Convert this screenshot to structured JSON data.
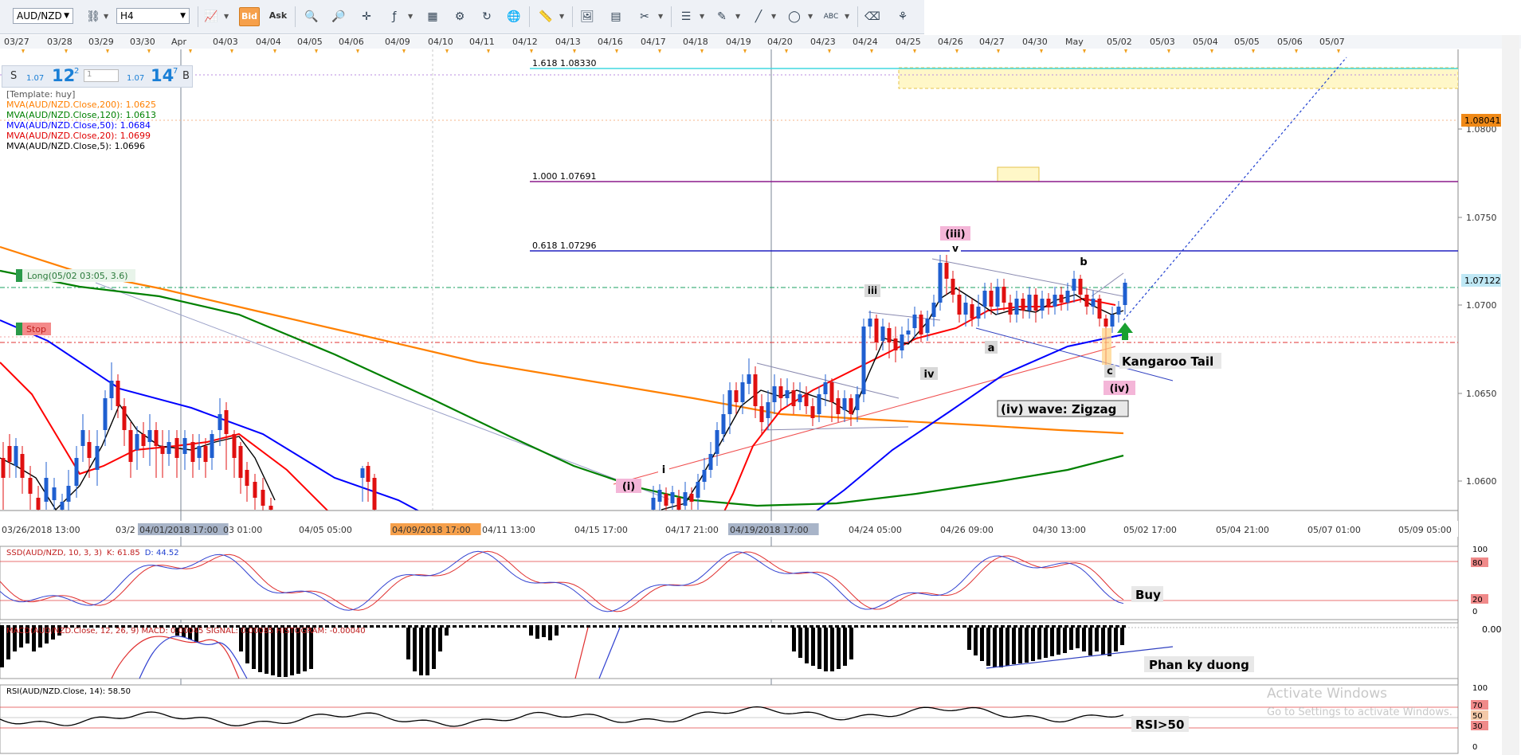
{
  "toolbar": {
    "symbol": "AUD/NZD",
    "timeframe": "H4",
    "bid_label": "Bid",
    "ask_label": "Ask"
  },
  "quote": {
    "sell_label": "S",
    "sell_small": "1.07",
    "sell_big": "12",
    "sell_sup": "2",
    "qty": "1",
    "buy_small": "1.07",
    "buy_big": "14",
    "buy_sup": "7",
    "buy_label": "B"
  },
  "legend": {
    "template": "[Template: huy]",
    "ma200": "MVA(AUD/NZD.Close,200): 1.0625",
    "ma120": "MVA(AUD/NZD.Close,120): 1.0613",
    "ma50": "MVA(AUD/NZD.Close,50): 1.0684",
    "ma20": "MVA(AUD/NZD.Close,20): 1.0699",
    "ma5": "MVA(AUD/NZD.Close,5): 1.0696"
  },
  "top_dates": [
    "03/27",
    "03/28",
    "03/29",
    "03/30",
    "Apr",
    "04/03",
    "04/04",
    "04/05",
    "04/06",
    "04/09",
    "04/10",
    "04/11",
    "04/12",
    "04/13",
    "04/16",
    "04/17",
    "04/18",
    "04/19",
    "04/20",
    "04/23",
    "04/24",
    "04/25",
    "04/26",
    "04/27",
    "04/30",
    "May",
    "05/02",
    "05/03",
    "05/04",
    "05/05",
    "05/06",
    "05/07"
  ],
  "bottom_dates": [
    "03/26/2018 13:00",
    "03/2",
    "04/01/2018 17:00",
    "03 01:00",
    "04/05 05:00",
    "04/09/2018 17:00",
    "04/11 13:00",
    "04/15 17:00",
    "04/17 21:00",
    "04/19/2018 17:00",
    "04/24 05:00",
    "04/26 09:00",
    "04/30 13:00",
    "05/02 17:00",
    "05/04 21:00",
    "05/07 01:00",
    "05/09 05:00"
  ],
  "price_ticks": [
    "1.0800",
    "1.0750",
    "1.0700",
    "1.0650",
    "1.0600"
  ],
  "price_badges": {
    "upper": "1.08041",
    "current": "1.07122"
  },
  "fib": {
    "f1618": "1.618 1.08330",
    "f1000": "1.000 1.07691",
    "f0618": "0.618 1.07296"
  },
  "orders": {
    "long": "Long(05/02 03:05, 3.6)",
    "stop": "Stop"
  },
  "waves": {
    "i": "i",
    "i_paren": "(i)",
    "iii": "iii",
    "iii_paren": "(iii)",
    "v": "v",
    "iv": "iv",
    "iv_paren": "(iv)",
    "a": "a",
    "b": "b",
    "c": "c"
  },
  "annotations": {
    "kangaroo": "Kangaroo Tail",
    "zigzag": "(iv) wave: Zigzag",
    "buy": "Buy",
    "divergence": "Phan ky duong",
    "rsi": "RSI>50"
  },
  "indicators": {
    "ssd_label_parts": [
      "SSD(AUD/NZD, 10, 3, 3)",
      "K: 61.85",
      "D: 44.52"
    ],
    "ssd_ticks": [
      "100",
      "80",
      "20",
      "0"
    ],
    "macd_label": "MACD(AUD/NZD.Close, 12, 26, 9) MACD: 0.00045 SIGNAL: 0.00085 HISTOGRAM: -0.00040",
    "macd_tick": "0.00000",
    "rsi_label": "RSI(AUD/NZD.Close, 14): 58.50",
    "rsi_ticks": [
      "100",
      "70",
      "50",
      "30",
      "0"
    ]
  },
  "watermark": {
    "line1": "Activate Windows",
    "line2": "Go to Settings to activate Windows."
  },
  "colors": {
    "ma200": "#ff8000",
    "ma120": "#008000",
    "ma50": "#0000ff",
    "ma20": "#ff0000",
    "ma5": "#000000",
    "bull": "#1f5fd0",
    "bear": "#e01010"
  }
}
